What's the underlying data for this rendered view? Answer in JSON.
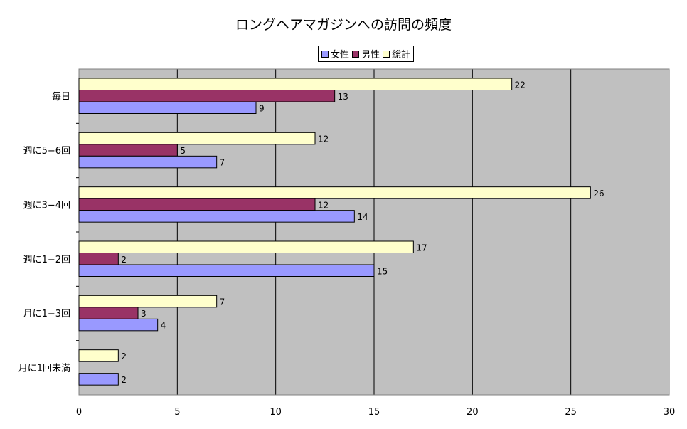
{
  "chart_data": {
    "type": "bar",
    "orientation": "horizontal",
    "title": "ロングヘアマガジンへの訪問の頻度",
    "categories": [
      "毎日",
      "週に5−6回",
      "週に3−4回",
      "週に1−2回",
      "月に1−3回",
      "月に1回未満"
    ],
    "series": [
      {
        "name": "総計",
        "color": "#ffffcc",
        "values": [
          22,
          12,
          26,
          17,
          7,
          2
        ]
      },
      {
        "name": "男性",
        "color": "#993366",
        "values": [
          13,
          5,
          12,
          2,
          3,
          null
        ]
      },
      {
        "name": "女性",
        "color": "#9999ff",
        "values": [
          9,
          7,
          14,
          15,
          4,
          2
        ]
      }
    ],
    "legend_order": [
      "女性",
      "男性",
      "総計"
    ],
    "xlim": [
      0,
      30
    ],
    "xticks": [
      "0",
      "5",
      "10",
      "15",
      "20",
      "25",
      "30"
    ],
    "plot_background": "#c0c0c0",
    "grid": true,
    "legend_position": "top"
  }
}
